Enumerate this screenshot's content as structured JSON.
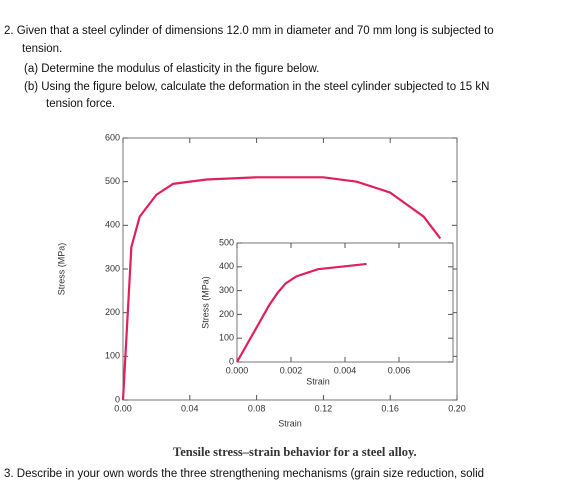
{
  "question": {
    "lines": [
      "2.  Given that a steel cylinder of dimensions 12.0 mm in diameter and 70 mm long is subjected to",
      "tension.",
      "(a) Determine the modulus of elasticity in the figure below.",
      "(b) Using the figure below, calculate the deformation in the steel cylinder subjected to 15 kN",
      "tension force."
    ]
  },
  "chart_data": [
    {
      "type": "line",
      "x_label": "Strain",
      "y_label": "Stress (MPa)",
      "color": "#e0205a",
      "x": [
        0,
        0.005,
        0.01,
        0.02,
        0.03,
        0.05,
        0.08,
        0.12,
        0.14,
        0.16,
        0.18,
        0.19
      ],
      "values": [
        0,
        350,
        420,
        470,
        495,
        505,
        510,
        510,
        500,
        475,
        420,
        370
      ],
      "xlim": [
        0,
        0.2
      ],
      "ylim": [
        0,
        600
      ],
      "xticks": [
        {
          "value": 0,
          "label": "0.00"
        },
        {
          "value": 0.04,
          "label": "0.04"
        },
        {
          "value": 0.08,
          "label": "0.08"
        },
        {
          "value": 0.12,
          "label": "0.12"
        },
        {
          "value": 0.16,
          "label": "0.16"
        },
        {
          "value": 0.2,
          "label": "0.20"
        }
      ],
      "yticks": [
        0,
        100,
        200,
        300,
        400,
        500,
        600
      ]
    },
    {
      "type": "line",
      "x_label": "Strain",
      "y_label": "Stress (MPa)",
      "color": "#e0205a",
      "x": [
        0,
        0.0008,
        0.0012,
        0.0015,
        0.0018,
        0.0022,
        0.003,
        0.004,
        0.0048
      ],
      "values": [
        0,
        160,
        240,
        290,
        330,
        360,
        390,
        402,
        412
      ],
      "xlim": [
        0,
        0.008
      ],
      "ylim": [
        0,
        500
      ],
      "xticks": [
        {
          "value": 0,
          "label": "0.000"
        },
        {
          "value": 0.002,
          "label": "0.002"
        },
        {
          "value": 0.004,
          "label": "0.004"
        },
        {
          "value": 0.006,
          "label": "0.006"
        }
      ],
      "yticks": [
        0,
        100,
        200,
        300,
        400,
        500
      ]
    }
  ],
  "caption": "Tensile stress–strain behavior for a steel alloy.",
  "next_question": "3.  Describe in your own words the three strengthening mechanisms (grain size reduction, solid"
}
